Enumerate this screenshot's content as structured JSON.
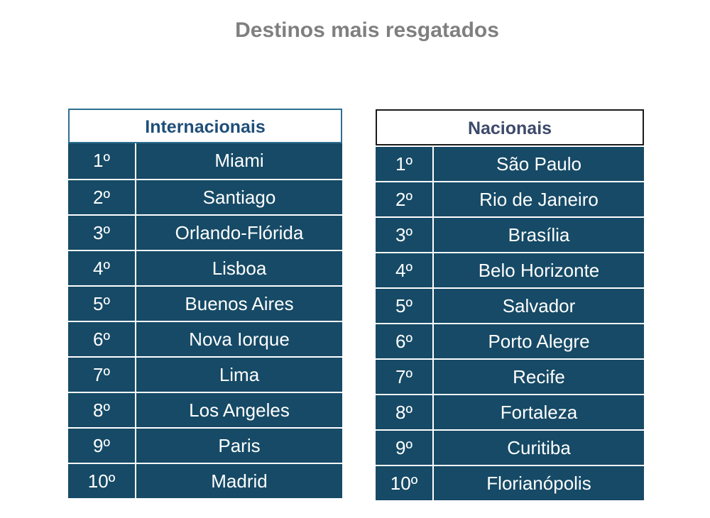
{
  "title": "Destinos mais resgatados",
  "tables": {
    "internacionais": {
      "header": "Internacionais",
      "rows": [
        {
          "rank": "1º",
          "city": "Miami"
        },
        {
          "rank": "2º",
          "city": "Santiago"
        },
        {
          "rank": "3º",
          "city": "Orlando-Flórida"
        },
        {
          "rank": "4º",
          "city": "Lisboa"
        },
        {
          "rank": "5º",
          "city": "Buenos Aires"
        },
        {
          "rank": "6º",
          "city": "Nova Iorque"
        },
        {
          "rank": "7º",
          "city": "Lima"
        },
        {
          "rank": "8º",
          "city": "Los Angeles"
        },
        {
          "rank": "9º",
          "city": "Paris"
        },
        {
          "rank": "10º",
          "city": "Madrid"
        }
      ]
    },
    "nacionais": {
      "header": "Nacionais",
      "rows": [
        {
          "rank": "1º",
          "city": "São Paulo"
        },
        {
          "rank": "2º",
          "city": "Rio de Janeiro"
        },
        {
          "rank": "3º",
          "city": "Brasília"
        },
        {
          "rank": "4º",
          "city": "Belo Horizonte"
        },
        {
          "rank": "5º",
          "city": "Salvador"
        },
        {
          "rank": "6º",
          "city": "Porto Alegre"
        },
        {
          "rank": "7º",
          "city": "Recife"
        },
        {
          "rank": "8º",
          "city": "Fortaleza"
        },
        {
          "rank": "9º",
          "city": "Curitiba"
        },
        {
          "rank": "10º",
          "city": "Florianópolis"
        }
      ]
    }
  },
  "colors": {
    "row_fill": "#164a66",
    "title_text": "#7f7f7f",
    "header_text": "#1f4e79"
  }
}
